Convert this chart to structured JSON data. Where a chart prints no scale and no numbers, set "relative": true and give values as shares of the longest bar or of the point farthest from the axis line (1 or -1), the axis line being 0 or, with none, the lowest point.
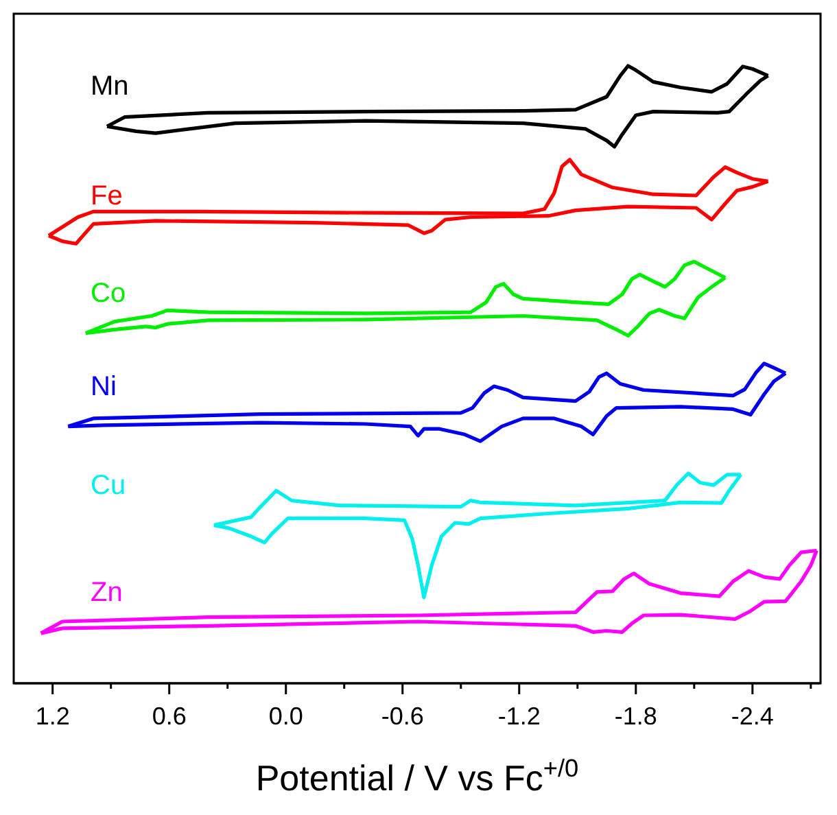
{
  "chart_data": {
    "type": "line",
    "xlabel": "Potential  /  V vs Fc$^{+/0}$",
    "xlim": [
      1.4,
      -2.75
    ],
    "xticks": [
      1.2,
      {
        "value": 0.9,
        "label": null
      },
      0.6,
      {
        "value": 0.3,
        "label": null
      },
      {
        "value": 0,
        "label": "0.0"
      },
      {
        "value": -0.3,
        "label": null
      },
      -0.6,
      {
        "value": -0.9,
        "label": null
      },
      -1.2,
      {
        "value": -1.5,
        "label": null
      },
      -1.8,
      {
        "value": -2.1,
        "label": null
      },
      -2.4,
      {
        "value": -2.7,
        "label": null
      }
    ],
    "relative": true,
    "marker": "none",
    "line_style": "solid",
    "series": [
      {
        "name": "Mn",
        "color": "#000000",
        "x": [
          0.92,
          0.83,
          0.4,
          -0.41,
          -1.22,
          -1.49,
          -1.65,
          -1.72,
          -1.76,
          -1.8,
          -1.89,
          -2.03,
          -2.19,
          -2.27,
          -2.35,
          -2.4,
          -2.48
        ],
        "values": [
          0.902,
          0.917,
          0.924,
          0.926,
          0.927,
          0.929,
          0.95,
          0.984,
          1.0,
          0.993,
          0.974,
          0.965,
          0.958,
          0.971,
          0.999,
          0.995,
          0.984
        ]
      },
      {
        "color": "#000000",
        "x": [
          -2.48,
          -2.44,
          -2.38,
          -2.28,
          -2.22,
          -1.89,
          -1.8,
          -1.73,
          -1.69,
          -1.65,
          -1.54,
          -1.22,
          -0.41,
          0.26,
          0.67,
          0.77,
          0.92
        ],
        "values": [
          0.984,
          0.976,
          0.958,
          0.926,
          0.924,
          0.926,
          0.92,
          0.889,
          0.869,
          0.879,
          0.898,
          0.907,
          0.911,
          0.907,
          0.891,
          0.894,
          0.902
        ]
      },
      {
        "name": "Fe",
        "color": "#ff0000",
        "x": [
          1.22,
          1.07,
          0.99,
          0.45,
          -0.41,
          -1.22,
          -1.33,
          -1.38,
          -1.42,
          -1.46,
          -1.52,
          -1.68,
          -1.89,
          -2.11,
          -2.2,
          -2.26,
          -2.32,
          -2.4,
          -2.48
        ],
        "values": [
          0.725,
          0.755,
          0.764,
          0.764,
          0.762,
          0.761,
          0.768,
          0.794,
          0.837,
          0.848,
          0.824,
          0.803,
          0.792,
          0.79,
          0.82,
          0.836,
          0.827,
          0.817,
          0.813
        ]
      },
      {
        "color": "#ff0000",
        "x": [
          -2.48,
          -2.4,
          -2.32,
          -2.26,
          -2.19,
          -2.11,
          -1.76,
          -1.49,
          -1.35,
          -0.95,
          -0.82,
          -0.75,
          -0.71,
          -0.63,
          -0.14,
          0.67,
          0.99,
          1.08,
          1.15,
          1.22
        ],
        "values": [
          0.813,
          0.804,
          0.798,
          0.777,
          0.751,
          0.77,
          0.772,
          0.766,
          0.757,
          0.755,
          0.751,
          0.733,
          0.729,
          0.742,
          0.746,
          0.749,
          0.744,
          0.712,
          0.716,
          0.725
        ]
      },
      {
        "name": "Co",
        "color": "#00ee00",
        "x": [
          1.03,
          0.88,
          0.69,
          0.61,
          0.4,
          -0.41,
          -0.95,
          -1.03,
          -1.08,
          -1.12,
          -1.17,
          -1.22,
          -1.49,
          -1.66,
          -1.73,
          -1.78,
          -1.82,
          -1.89,
          -1.95,
          -2.0,
          -2.05,
          -2.1,
          -2.16,
          -2.26
        ],
        "values": [
          0.567,
          0.586,
          0.595,
          0.604,
          0.601,
          0.599,
          0.601,
          0.617,
          0.642,
          0.647,
          0.63,
          0.623,
          0.617,
          0.614,
          0.63,
          0.655,
          0.662,
          0.651,
          0.642,
          0.655,
          0.677,
          0.683,
          0.673,
          0.657
        ]
      },
      {
        "color": "#00ee00",
        "x": [
          -2.26,
          -2.19,
          -2.12,
          -2.05,
          -2.0,
          -1.92,
          -1.87,
          -1.81,
          -1.76,
          -1.7,
          -1.6,
          -1.22,
          -0.41,
          0.4,
          0.61,
          0.67,
          0.72,
          0.88,
          1.03
        ],
        "values": [
          0.657,
          0.642,
          0.625,
          0.591,
          0.595,
          0.605,
          0.599,
          0.578,
          0.563,
          0.573,
          0.588,
          0.595,
          0.589,
          0.588,
          0.582,
          0.576,
          0.578,
          0.573,
          0.567
        ]
      },
      {
        "name": "Ni",
        "color": "#0000ee",
        "x": [
          1.12,
          0.99,
          0.13,
          -0.9,
          -0.96,
          -1.02,
          -1.07,
          -1.14,
          -1.22,
          -1.49,
          -1.56,
          -1.61,
          -1.65,
          -1.72,
          -1.84,
          -2.3,
          -2.36,
          -2.42,
          -2.46,
          -2.51,
          -2.57
        ],
        "values": [
          0.416,
          0.429,
          0.436,
          0.438,
          0.446,
          0.47,
          0.481,
          0.475,
          0.463,
          0.457,
          0.472,
          0.496,
          0.502,
          0.485,
          0.475,
          0.466,
          0.476,
          0.504,
          0.518,
          0.511,
          0.502
        ]
      },
      {
        "color": "#0000ee",
        "x": [
          -2.57,
          -2.51,
          -2.46,
          -2.39,
          -2.3,
          -2.03,
          -1.7,
          -1.65,
          -1.58,
          -1.52,
          -1.38,
          -1.22,
          -1.11,
          -1.0,
          -0.92,
          -0.79,
          -0.71,
          -0.68,
          -0.64,
          -0.41,
          0.13,
          0.94,
          1.12
        ],
        "values": [
          0.502,
          0.489,
          0.468,
          0.435,
          0.444,
          0.448,
          0.446,
          0.433,
          0.403,
          0.416,
          0.429,
          0.429,
          0.416,
          0.392,
          0.403,
          0.412,
          0.412,
          0.401,
          0.416,
          0.42,
          0.422,
          0.418,
          0.416
        ]
      },
      {
        "name": "Cu",
        "color": "#00f0f0",
        "x": [
          0.37,
          0.18,
          0.13,
          0.05,
          -0.03,
          -0.28,
          -0.9,
          -0.95,
          -1.0,
          -1.49,
          -1.95,
          -2.01,
          -2.07,
          -2.13,
          -2.2,
          -2.27,
          -2.34
        ],
        "values": [
          0.256,
          0.269,
          0.286,
          0.312,
          0.296,
          0.288,
          0.286,
          0.296,
          0.293,
          0.288,
          0.296,
          0.321,
          0.34,
          0.325,
          0.321,
          0.338,
          0.338
        ]
      },
      {
        "color": "#00f0f0",
        "x": [
          -2.34,
          -2.28,
          -2.24,
          -2.03,
          -1.76,
          -1.35,
          -1.0,
          -0.94,
          -0.87,
          -0.8,
          -0.75,
          -0.71,
          -0.68,
          -0.65,
          -0.61,
          -0.41,
          -0.01,
          0.07,
          0.11,
          0.18,
          0.29,
          0.37
        ],
        "values": [
          0.338,
          0.312,
          0.292,
          0.293,
          0.283,
          0.275,
          0.267,
          0.258,
          0.26,
          0.238,
          0.191,
          0.139,
          0.191,
          0.234,
          0.264,
          0.267,
          0.267,
          0.243,
          0.228,
          0.238,
          0.251,
          0.256
        ]
      },
      {
        "name": "Zn",
        "color": "#ff00ff",
        "x": [
          1.26,
          1.15,
          0.4,
          -0.68,
          -1.49,
          -1.6,
          -1.68,
          -1.74,
          -1.79,
          -1.87,
          -2.03,
          -2.23,
          -2.3,
          -2.38,
          -2.46,
          -2.54,
          -2.59,
          -2.65,
          -2.73
        ],
        "values": [
          0.081,
          0.1,
          0.107,
          0.11,
          0.115,
          0.148,
          0.149,
          0.169,
          0.178,
          0.161,
          0.146,
          0.141,
          0.165,
          0.182,
          0.172,
          0.169,
          0.191,
          0.212,
          0.215
        ]
      },
      {
        "color": "#ff00ff",
        "x": [
          -2.73,
          -2.7,
          -2.65,
          -2.57,
          -2.46,
          -2.39,
          -2.31,
          -2.03,
          -1.84,
          -1.78,
          -1.73,
          -1.65,
          -1.58,
          -1.49,
          -0.68,
          0.4,
          1.15,
          1.26
        ],
        "values": [
          0.215,
          0.191,
          0.165,
          0.133,
          0.132,
          0.117,
          0.104,
          0.111,
          0.11,
          0.097,
          0.083,
          0.085,
          0.083,
          0.093,
          0.1,
          0.093,
          0.089,
          0.081
        ]
      }
    ]
  }
}
